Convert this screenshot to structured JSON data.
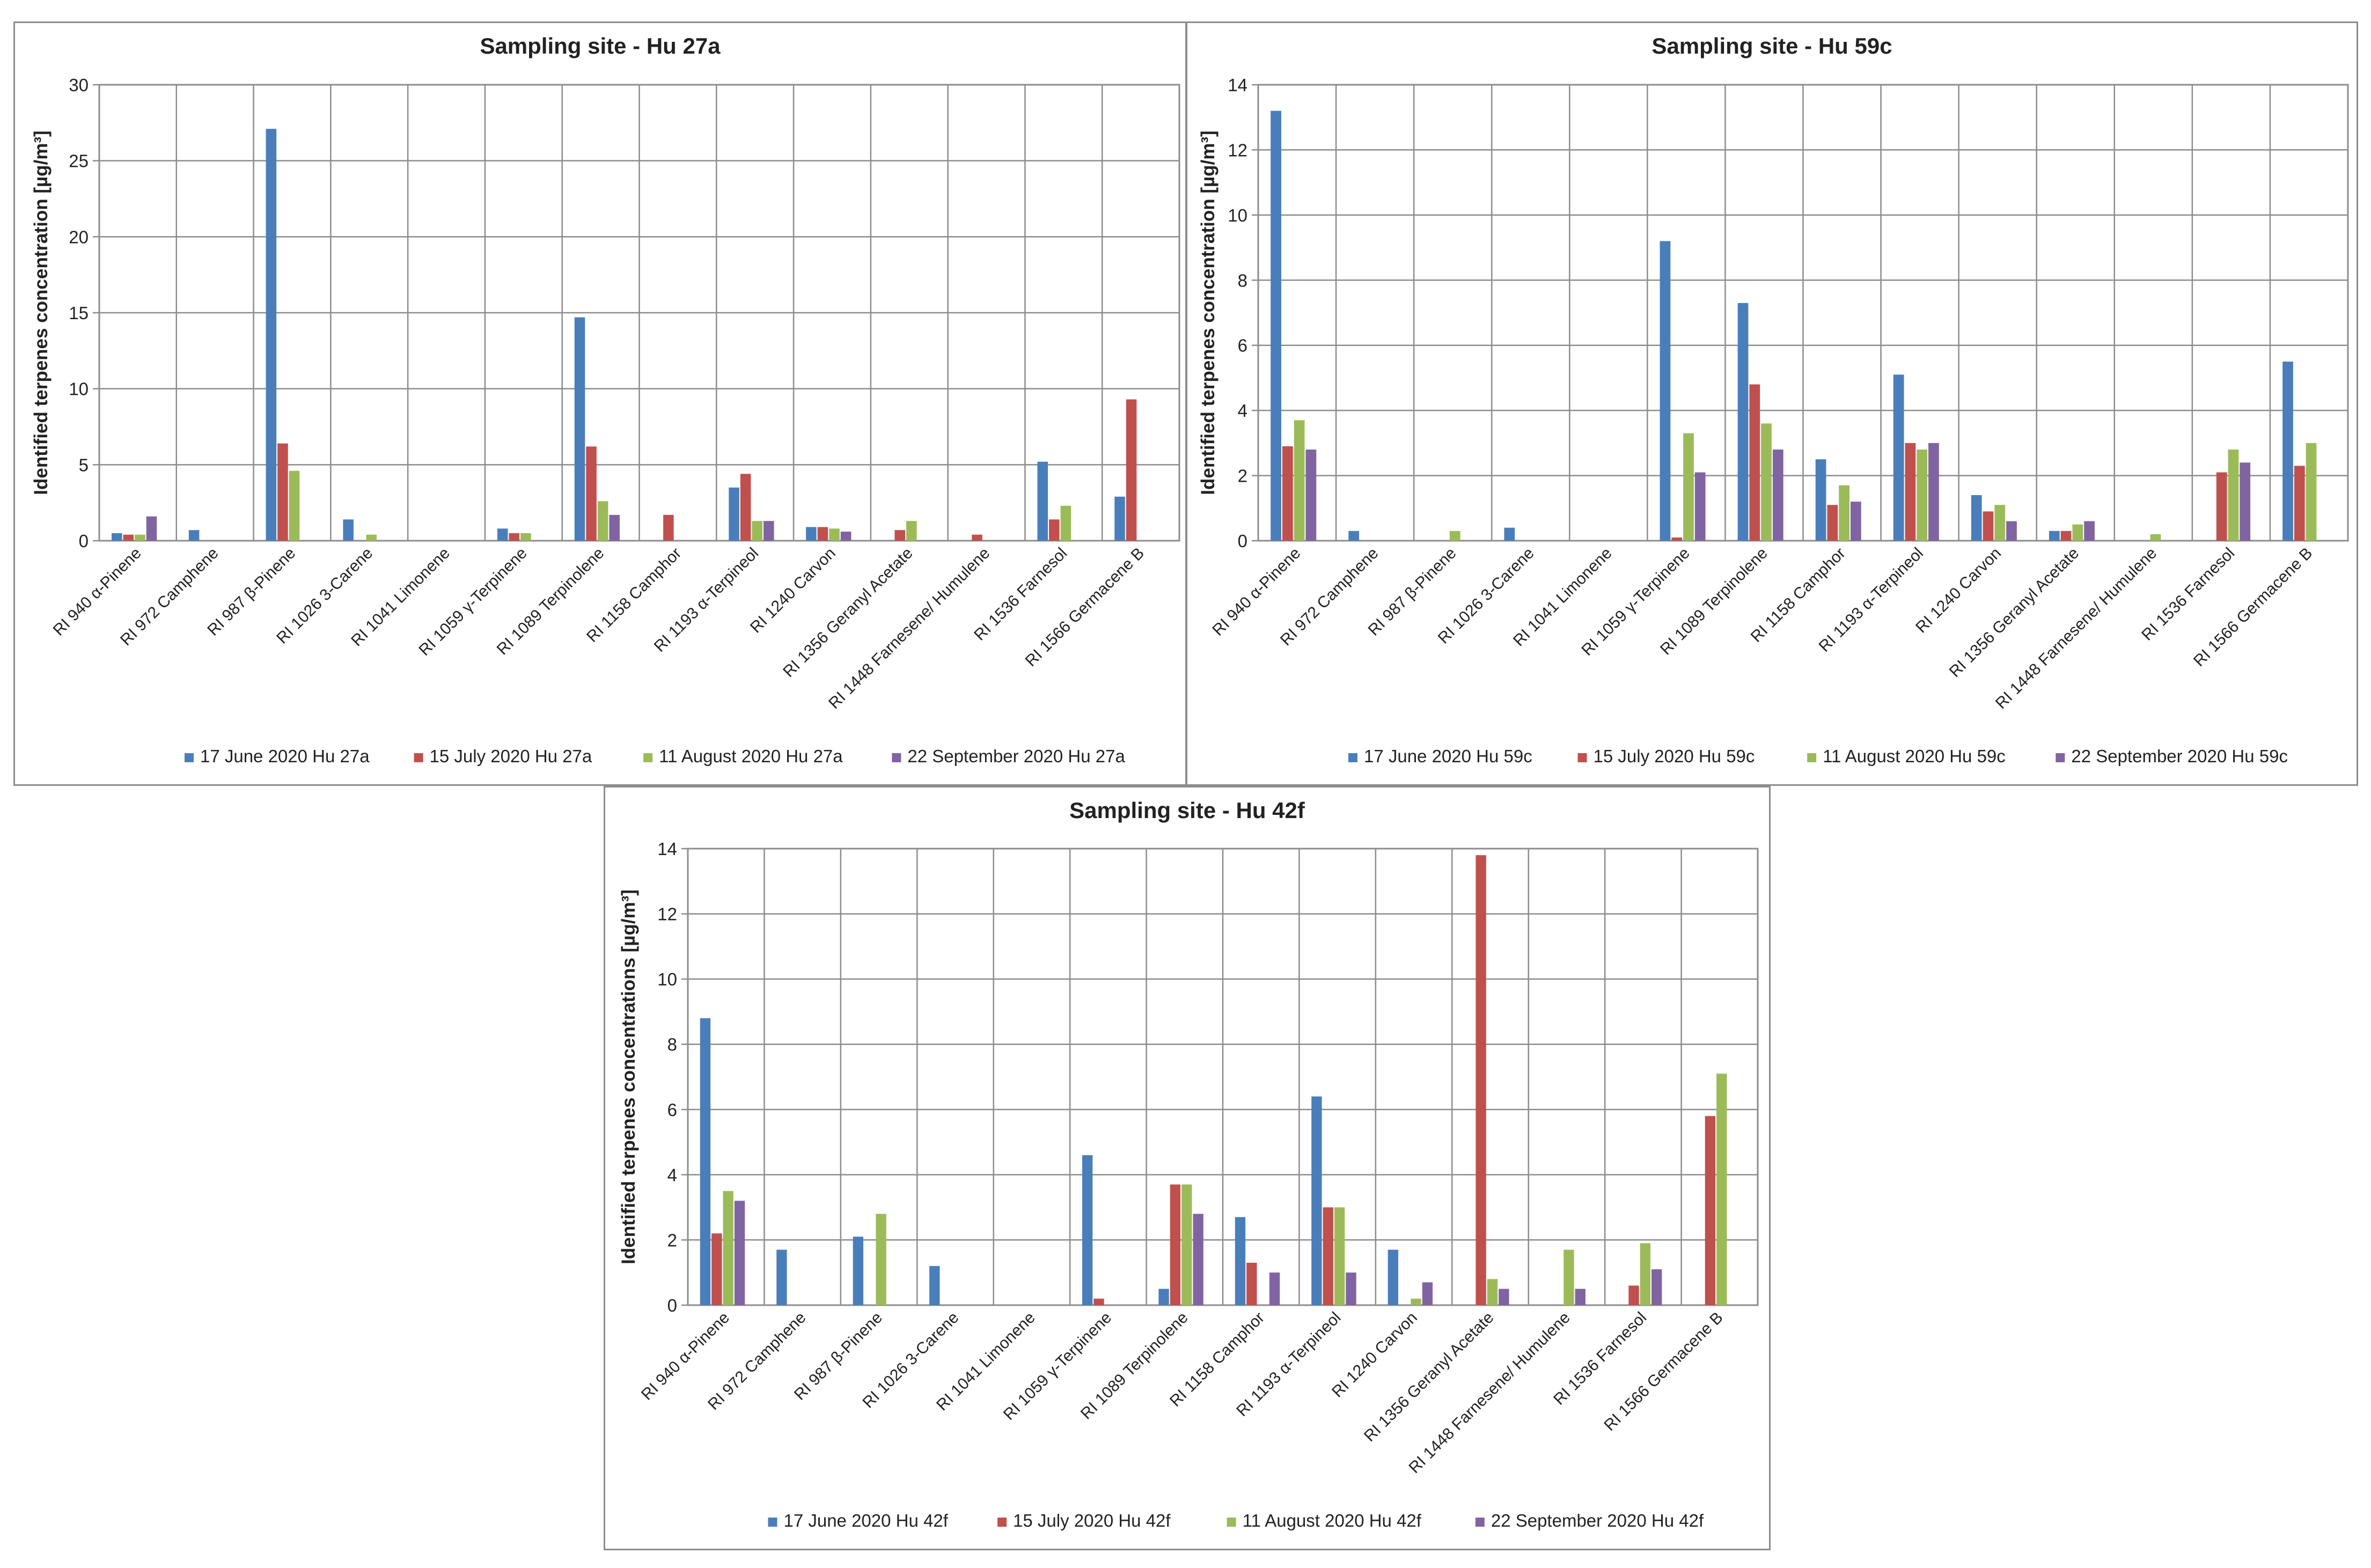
{
  "categories": [
    "RI 940 α-Pinene",
    "RI 972 Camphene",
    "RI 987 β-Pinene",
    "RI 1026 3-Carene",
    "RI 1041 Limonene",
    "RI 1059 γ-Terpinene",
    "RI 1089 Terpinolene",
    "RI 1158 Camphor",
    "RI 1193 α-Terpineol",
    "RI 1240  Carvon",
    "RI 1356 Geranyl Acetate",
    "RI 1448 Farnesene/ Humulene",
    "RI 1536 Farnesol",
    "RI 1566 Germacene B"
  ],
  "colors": {
    "june": "#4a7ebb",
    "july": "#c0504d",
    "august": "#9bbb59",
    "september": "#8064a2",
    "grid": "#8c8c8c",
    "text": "#222222"
  },
  "chart_data": [
    {
      "id": "hu27a",
      "type": "bar",
      "title": "Sampling site - Hu 27a",
      "ylabel": "Identified terpenes concentration [µg/m³]",
      "xlabel": "",
      "ylim": [
        0,
        30
      ],
      "yticks": [
        0,
        5,
        10,
        15,
        20,
        25,
        30
      ],
      "legend_position": "bottom",
      "series": [
        {
          "name": "17 June 2020 Hu 27a",
          "color": "#4a7ebb",
          "values": [
            0.5,
            0.7,
            27.1,
            1.4,
            0,
            0.8,
            14.7,
            0,
            3.5,
            0.9,
            0,
            0,
            5.2,
            2.9
          ]
        },
        {
          "name": "15 July 2020 Hu 27a",
          "color": "#c0504d",
          "values": [
            0.4,
            0,
            6.4,
            0,
            0,
            0.5,
            6.2,
            1.7,
            4.4,
            0.9,
            0.7,
            0.4,
            1.4,
            9.3
          ]
        },
        {
          "name": "11 August 2020 Hu 27a",
          "color": "#9bbb59",
          "values": [
            0.4,
            0,
            4.6,
            0.4,
            0,
            0.5,
            2.6,
            0,
            1.3,
            0.8,
            1.3,
            0,
            2.3,
            0
          ]
        },
        {
          "name": "22 September 2020 Hu 27a",
          "color": "#8064a2",
          "values": [
            1.6,
            0,
            0,
            0,
            0,
            0,
            1.7,
            0,
            1.3,
            0.6,
            0,
            0,
            0,
            0
          ]
        }
      ]
    },
    {
      "id": "hu59c",
      "type": "bar",
      "title": "Sampling site - Hu 59c",
      "ylabel": "Identified terpenes concentration [µg/m³]",
      "xlabel": "",
      "ylim": [
        0,
        14
      ],
      "yticks": [
        0,
        2,
        4,
        6,
        8,
        10,
        12,
        14
      ],
      "legend_position": "bottom",
      "series": [
        {
          "name": "17 June 2020 Hu 59c",
          "color": "#4a7ebb",
          "values": [
            13.2,
            0.3,
            0,
            0.4,
            0,
            9.2,
            7.3,
            2.5,
            5.1,
            1.4,
            0.3,
            0,
            0,
            5.5
          ]
        },
        {
          "name": "15 July 2020 Hu 59c",
          "color": "#c0504d",
          "values": [
            2.9,
            0,
            0,
            0,
            0,
            0.1,
            4.8,
            1.1,
            3.0,
            0.9,
            0.3,
            0,
            2.1,
            2.3
          ]
        },
        {
          "name": "11 August 2020 Hu 59c",
          "color": "#9bbb59",
          "values": [
            3.7,
            0,
            0.3,
            0,
            0,
            3.3,
            3.6,
            1.7,
            2.8,
            1.1,
            0.5,
            0.2,
            2.8,
            3.0
          ]
        },
        {
          "name": "22 September 2020 Hu 59c",
          "color": "#8064a2",
          "values": [
            2.8,
            0,
            0,
            0,
            0,
            2.1,
            2.8,
            1.2,
            3.0,
            0.6,
            0.6,
            0,
            2.4,
            0
          ]
        }
      ]
    },
    {
      "id": "hu42f",
      "type": "bar",
      "title": "Sampling site - Hu 42f",
      "ylabel": "Identified terpenes concentrations [µg/m³]",
      "xlabel": "",
      "ylim": [
        0,
        14
      ],
      "yticks": [
        0,
        2,
        4,
        6,
        8,
        10,
        12,
        14
      ],
      "legend_position": "bottom",
      "series": [
        {
          "name": "17 June 2020 Hu 42f",
          "color": "#4a7ebb",
          "values": [
            8.8,
            1.7,
            2.1,
            1.2,
            0,
            4.6,
            0.5,
            2.7,
            6.4,
            1.7,
            0,
            0,
            0,
            0
          ]
        },
        {
          "name": "15 July 2020 Hu 42f",
          "color": "#c0504d",
          "values": [
            2.2,
            0,
            0,
            0,
            0,
            0.2,
            3.7,
            1.3,
            3.0,
            0,
            13.8,
            0,
            0.6,
            5.8
          ]
        },
        {
          "name": "11 August 2020 Hu 42f",
          "color": "#9bbb59",
          "values": [
            3.5,
            0,
            2.8,
            0,
            0,
            0,
            3.7,
            0,
            3.0,
            0.2,
            0.8,
            1.7,
            1.9,
            7.1
          ]
        },
        {
          "name": "22 September 2020 Hu 42f",
          "color": "#8064a2",
          "values": [
            3.2,
            0,
            0,
            0,
            0,
            0,
            2.8,
            1.0,
            1.0,
            0.7,
            0.5,
            0.5,
            1.1,
            0
          ]
        }
      ]
    }
  ]
}
